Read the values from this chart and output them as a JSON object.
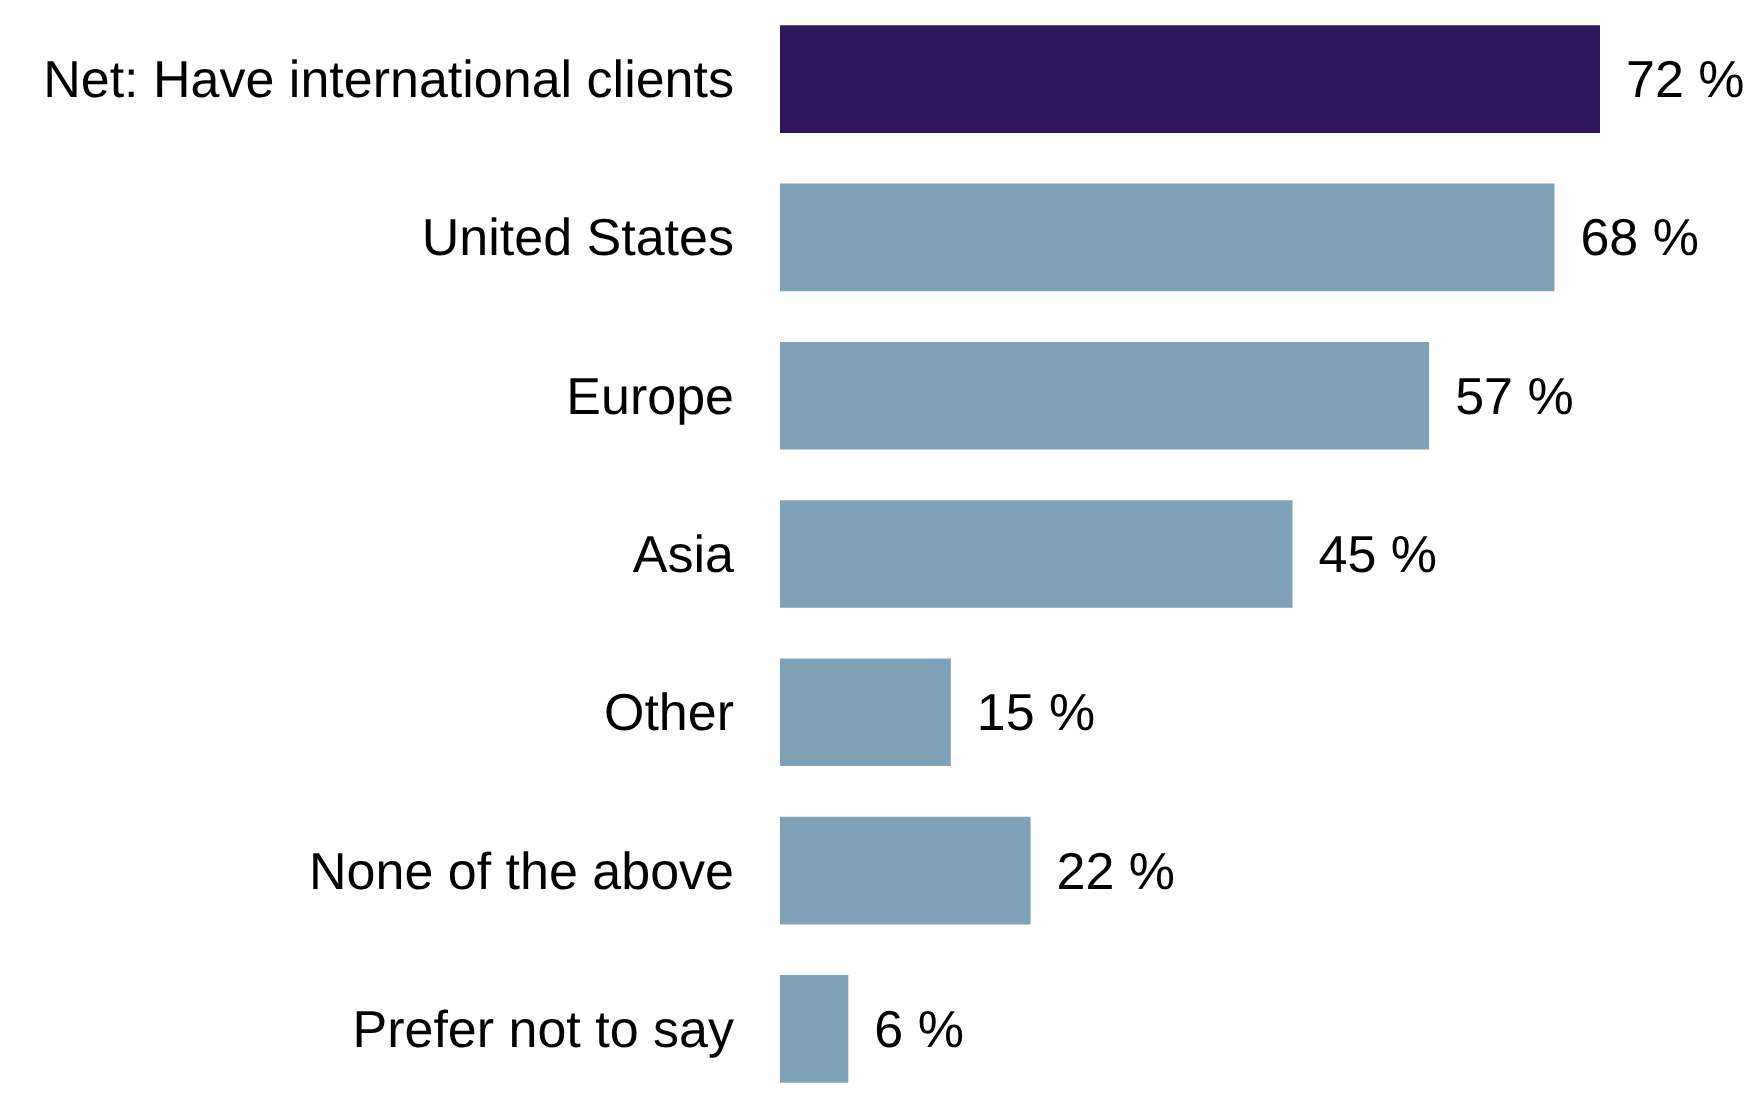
{
  "chart_data": {
    "type": "bar",
    "orientation": "horizontal",
    "categories": [
      "Net: Have international clients",
      "United States",
      "Europe",
      "Asia",
      "Other",
      "None of the above",
      "Prefer not to say"
    ],
    "values": [
      72,
      68,
      57,
      45,
      15,
      22,
      6
    ],
    "colors": [
      "#2e175d",
      "#80a2b8",
      "#80a2b8",
      "#80a2b8",
      "#80a2b8",
      "#80a2b8",
      "#80a2b8"
    ],
    "value_labels": [
      "72 %",
      "68 %",
      "57 %",
      "45 %",
      "15 %",
      "22 %",
      "6 %"
    ]
  }
}
